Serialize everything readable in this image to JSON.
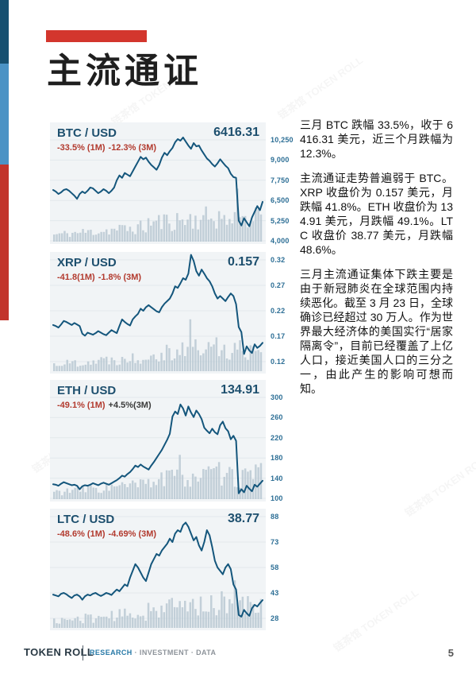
{
  "page": {
    "title": "主流通证",
    "page_number": "5"
  },
  "footer": {
    "brand": "TOKEN ROLL",
    "research": "RESEARCH",
    "rest": " · INVESTMENT · DATA"
  },
  "watermark_text": "链茶馆 TOKEN ROLL",
  "commentary": {
    "p1": "三月 BTC 跌幅 33.5%，收于 6416.31 美元，近三个月跌幅为 12.3%。",
    "p2": "主流通证走势普遍弱于 BTC。XRP 收盘价为 0.157 美元，月跌幅 41.8%。ETH 收盘价为 134.91 美元，月跌幅 49.1%。LTC 收盘价 38.77 美元，月跌幅 48.6%。",
    "p3": "三月主流通证集体下跌主要是由于新冠肺炎在全球范围内持续恶化。截至 3 月 23 日，全球确诊已经超过 30 万人。作为世界最大经济体的美国实行“居家隔离令”，目前已经覆盖了上亿人口，接近美国人口的三分之一，由此产生的影响可想而知。"
  },
  "colors": {
    "accent_red": "#d3362d",
    "navy": "#1d4f6e",
    "line": "#14567c",
    "change_red": "#b23a2e",
    "change_dark": "#3a3a3a",
    "axis_blue": "#2c6e95",
    "volume": "#b6c6d1",
    "grid": "#e2e8ec",
    "strip_navy": "#175070",
    "strip_blue": "#4b93c5",
    "strip_red": "#c2342b",
    "research_blue": "#2779a7",
    "footer_gray": "#8d939a"
  },
  "chart_data": [
    {
      "type": "line",
      "pair": "BTC / USD",
      "price": "6416.31",
      "changes": [
        {
          "text": "-33.5% (1M)",
          "color": "#b23a2e"
        },
        {
          "text": "-12.3% (3M)",
          "color": "#b23a2e"
        }
      ],
      "yticks": [
        "10,250",
        "9,000",
        "7,750",
        "6,500",
        "5,250",
        "4,000"
      ],
      "ylim": [
        4000,
        10250
      ],
      "values": [
        7150,
        7050,
        6900,
        7000,
        7150,
        7200,
        7100,
        6950,
        6800,
        6600,
        6900,
        7050,
        6950,
        7100,
        7300,
        7250,
        7100,
        6950,
        7050,
        7200,
        7100,
        6950,
        7100,
        7300,
        7750,
        8050,
        7900,
        8200,
        8100,
        8000,
        8300,
        8600,
        8900,
        9200,
        9050,
        9150,
        8900,
        8700,
        8550,
        8400,
        8700,
        9150,
        9450,
        9300,
        9550,
        9750,
        10100,
        10300,
        10200,
        10400,
        10150,
        9900,
        9700,
        10050,
        9850,
        9900,
        9600,
        9350,
        9100,
        8950,
        8750,
        8600,
        8800,
        9050,
        8850,
        8650,
        8500,
        8150,
        7950,
        7900,
        5250,
        4950,
        5400,
        5150,
        4900,
        5450,
        5800,
        6150,
        5900,
        6416
      ],
      "volume_seed": 11,
      "volume_spike": {
        "index": 70,
        "height": 0.98
      }
    },
    {
      "type": "line",
      "pair": "XRP / USD",
      "price": "0.157",
      "changes": [
        {
          "text": "-41.8(1M)",
          "color": "#b23a2e"
        },
        {
          "text": "-1.8% (3M)",
          "color": "#b23a2e"
        }
      ],
      "yticks": [
        "0.32",
        "0.27",
        "0.22",
        "0.17",
        "0.12"
      ],
      "ylim": [
        0.12,
        0.32
      ],
      "values": [
        0.192,
        0.19,
        0.187,
        0.193,
        0.2,
        0.198,
        0.195,
        0.192,
        0.196,
        0.193,
        0.19,
        0.175,
        0.171,
        0.177,
        0.175,
        0.173,
        0.176,
        0.18,
        0.177,
        0.174,
        0.172,
        0.177,
        0.182,
        0.179,
        0.176,
        0.19,
        0.203,
        0.198,
        0.194,
        0.191,
        0.203,
        0.209,
        0.214,
        0.224,
        0.22,
        0.227,
        0.231,
        0.227,
        0.223,
        0.219,
        0.217,
        0.227,
        0.234,
        0.239,
        0.244,
        0.254,
        0.268,
        0.265,
        0.274,
        0.284,
        0.281,
        0.293,
        0.33,
        0.318,
        0.298,
        0.289,
        0.301,
        0.293,
        0.284,
        0.278,
        0.268,
        0.254,
        0.244,
        0.249,
        0.244,
        0.239,
        0.247,
        0.254,
        0.249,
        0.233,
        0.188,
        0.178,
        0.135,
        0.15,
        0.142,
        0.137,
        0.154,
        0.147,
        0.151,
        0.157
      ],
      "volume_seed": 22,
      "volume_spike": {
        "index": 52,
        "height": 0.96
      }
    },
    {
      "type": "line",
      "pair": "ETH / USD",
      "price": "134.91",
      "changes": [
        {
          "text": "-49.1% (1M)",
          "color": "#b23a2e"
        },
        {
          "text": "+4.5%(3M)",
          "color": "#3a3a3a"
        }
      ],
      "yticks": [
        "300",
        "260",
        "220",
        "180",
        "140",
        "100"
      ],
      "ylim": [
        100,
        300
      ],
      "values": [
        128,
        127,
        125,
        129,
        132,
        130,
        128,
        126,
        127,
        125,
        118,
        124,
        126,
        125,
        127,
        130,
        128,
        126,
        129,
        131,
        129,
        127,
        130,
        133,
        136,
        140,
        145,
        143,
        148,
        152,
        158,
        165,
        162,
        167,
        163,
        160,
        157,
        165,
        172,
        180,
        188,
        196,
        206,
        216,
        228,
        262,
        272,
        267,
        286,
        278,
        264,
        282,
        270,
        261,
        274,
        267,
        257,
        240,
        234,
        229,
        238,
        231,
        227,
        245,
        252,
        239,
        233,
        217,
        224,
        214,
        110,
        118,
        112,
        125,
        119,
        114,
        127,
        123,
        129,
        134.91
      ],
      "volume_seed": 33,
      "volume_spike": {
        "index": 48,
        "height": 0.82
      }
    },
    {
      "type": "line",
      "pair": "LTC / USD",
      "price": "38.77",
      "changes": [
        {
          "text": "-48.6% (1M)",
          "color": "#b23a2e"
        },
        {
          "text": "-4.69% (3M)",
          "color": "#b23a2e"
        }
      ],
      "yticks": [
        "88",
        "73",
        "58",
        "43",
        "28"
      ],
      "ylim": [
        28,
        88
      ],
      "values": [
        42,
        41.5,
        41,
        42.5,
        43,
        42.2,
        41,
        40,
        41.5,
        42,
        41,
        39,
        41,
        42,
        41.5,
        42.5,
        43,
        42,
        41.2,
        42,
        43,
        42.5,
        41.8,
        43.5,
        45,
        44,
        46,
        48,
        47,
        52,
        56,
        60,
        58,
        55,
        52,
        50,
        55,
        60,
        63,
        66,
        65,
        68,
        70,
        72,
        75,
        73,
        78,
        80,
        79,
        83,
        84.5,
        82,
        78,
        74,
        76,
        71,
        68,
        73,
        80,
        77,
        70,
        62,
        58,
        56,
        54,
        58,
        60,
        57,
        48,
        45,
        30,
        29,
        33,
        31,
        29.5,
        34,
        36,
        35,
        37,
        38.77
      ],
      "volume_seed": 44,
      "volume_spike": {
        "index": 69,
        "height": 0.88
      }
    }
  ]
}
